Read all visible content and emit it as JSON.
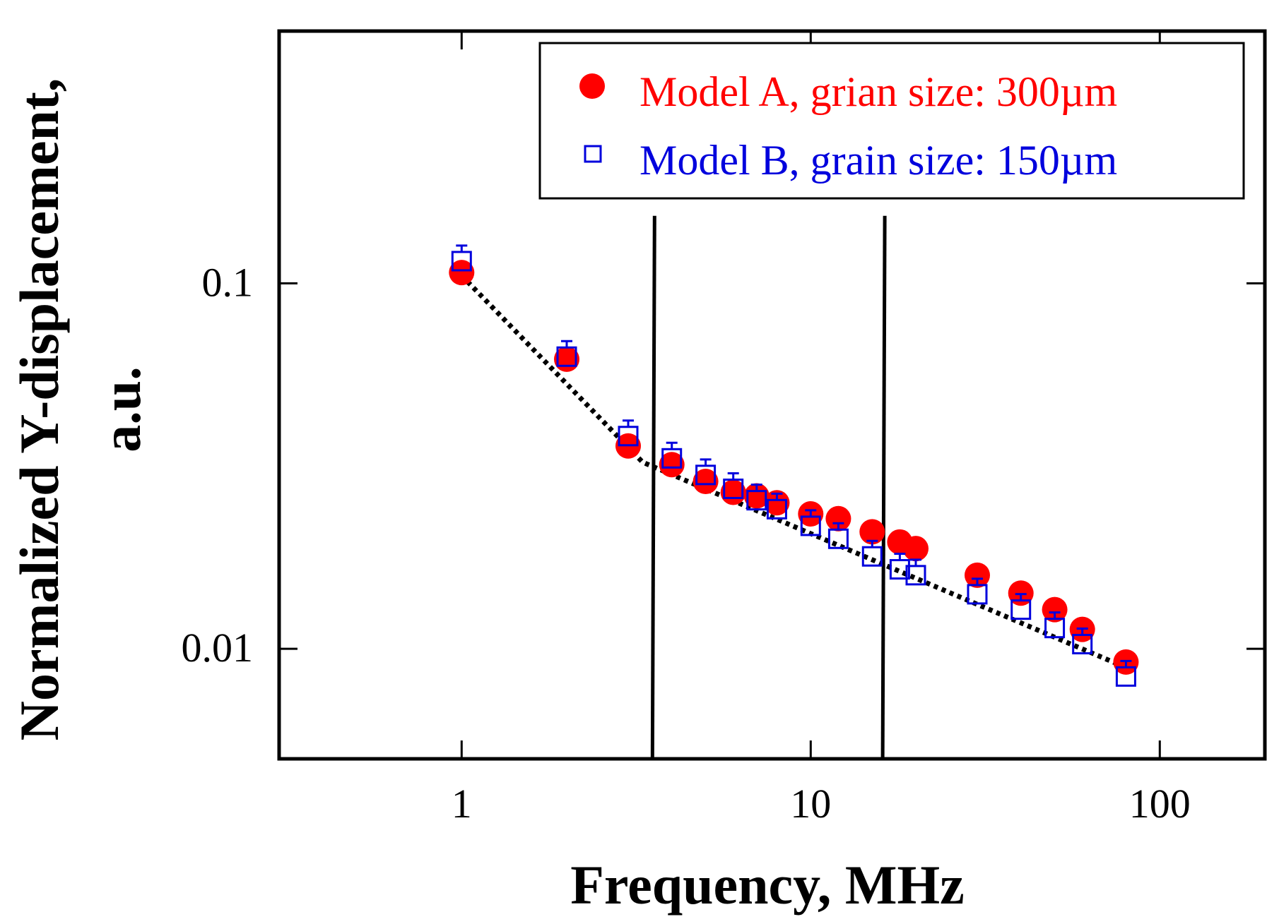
{
  "chart_data": {
    "type": "scatter",
    "title": "",
    "xlabel": "Frequency, MHz",
    "ylabel_lines": [
      "Normalized  Y-displacement,",
      "a.u."
    ],
    "xscale": "log",
    "yscale": "log",
    "xlim": [
      0.3,
      200
    ],
    "ylim": [
      0.005,
      0.49
    ],
    "xticks": [
      {
        "value": 1,
        "label": "1"
      },
      {
        "value": 10,
        "label": "10"
      },
      {
        "value": 100,
        "label": "100"
      }
    ],
    "yticks": [
      {
        "value": 0.1,
        "label": "0.1"
      },
      {
        "value": 0.01,
        "label": "0.01"
      }
    ],
    "grid": false,
    "legend_position": "top-right",
    "series": [
      {
        "name": "Model A, grian size: 300µm",
        "marker": "filled-circle",
        "color": "#ff0000",
        "x": [
          1,
          2,
          3,
          4,
          5,
          6,
          7,
          8,
          10,
          12,
          15,
          18,
          20,
          30,
          40,
          50,
          60,
          80
        ],
        "y": [
          0.107,
          0.062,
          0.0359,
          0.0319,
          0.0287,
          0.0268,
          0.0262,
          0.0251,
          0.0234,
          0.0227,
          0.0209,
          0.0196,
          0.0188,
          0.0159,
          0.0142,
          0.0128,
          0.0113,
          0.0092
        ]
      },
      {
        "name": "Model B, grain size: 150µm",
        "marker": "open-square",
        "color": "#0000dd",
        "x": [
          1,
          2,
          3,
          4,
          5,
          6,
          7,
          8,
          10,
          12,
          15,
          18,
          20,
          30,
          40,
          50,
          60,
          80
        ],
        "y": [
          0.115,
          0.063,
          0.0382,
          0.0332,
          0.0299,
          0.0274,
          0.0255,
          0.0241,
          0.0217,
          0.02,
          0.0179,
          0.0165,
          0.0159,
          0.0141,
          0.0128,
          0.0114,
          0.0103,
          0.0084
        ]
      }
    ],
    "fit_line": {
      "style": "dotted",
      "color": "#000000",
      "x": [
        1,
        3.3,
        82
      ],
      "y": [
        0.105,
        0.0324,
        0.0088
      ]
    },
    "vertical_lines": [
      {
        "x": 3.57,
        "y_top": 0.153
      },
      {
        "x": 16.3,
        "y_top": 0.153
      }
    ]
  }
}
